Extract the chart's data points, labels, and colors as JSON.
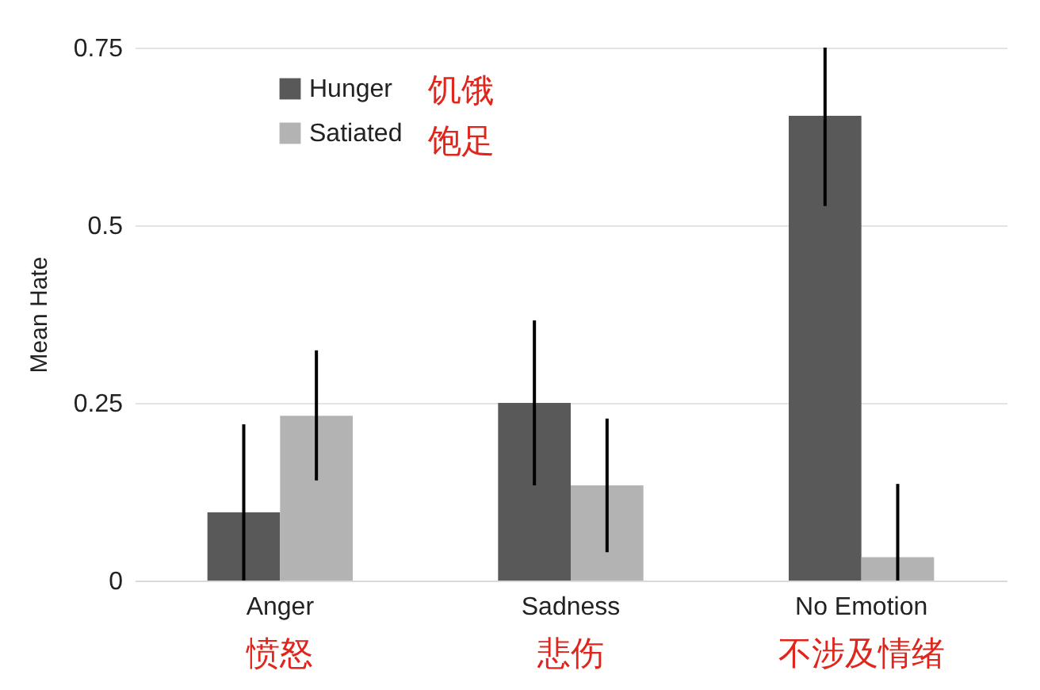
{
  "chart_data": {
    "type": "bar",
    "ylabel": "Mean Hate",
    "categories": [
      "Anger",
      "Sadness",
      "No Emotion"
    ],
    "series": [
      {
        "name": "Hunger",
        "color": "#595959",
        "values": [
          0.096,
          0.25,
          0.654
        ],
        "errors": [
          [
            0,
            0.22
          ],
          [
            0.134,
            0.366
          ],
          [
            0.527,
            0.75
          ]
        ]
      },
      {
        "name": "Satiated",
        "color": "#b3b3b3",
        "values": [
          0.232,
          0.134,
          0.033
        ],
        "errors": [
          [
            0.141,
            0.324
          ],
          [
            0.04,
            0.228
          ],
          [
            0,
            0.136
          ]
        ]
      }
    ],
    "ylim": [
      0,
      0.75
    ],
    "yticks": [
      0,
      {
        "value": 0.25,
        "label": "0.25"
      },
      {
        "value": 0.5,
        "label": "0.5"
      },
      {
        "value": 0.75,
        "label": "0.75"
      }
    ],
    "grid": "y",
    "legend": "top left",
    "annotations": [
      "愤怒",
      "悲伤",
      "不涉及情绪",
      "饥饿",
      "饱足"
    ]
  }
}
